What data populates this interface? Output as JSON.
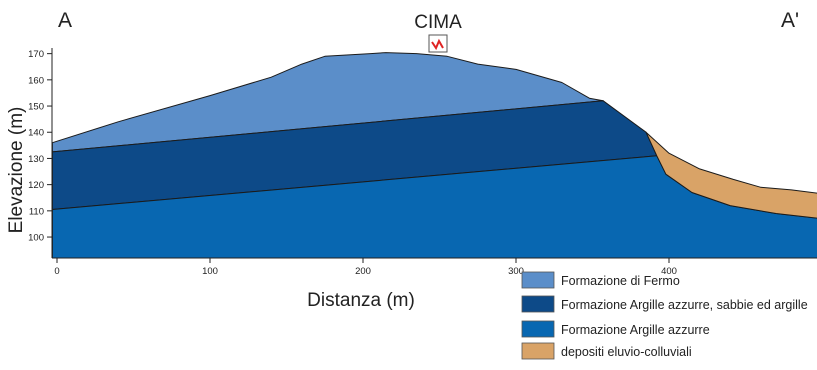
{
  "section": {
    "left_label": "A",
    "right_label": "A'",
    "peak_label": "CIMA"
  },
  "axes": {
    "xlabel": "Distanza (m)",
    "ylabel": "Elevazione (m)",
    "x_ticks": [
      0,
      100,
      200,
      300,
      400
    ],
    "y_ticks": [
      100,
      110,
      120,
      130,
      140,
      150,
      160,
      170
    ],
    "x_range": [
      0,
      500
    ],
    "y_range": [
      92,
      174
    ]
  },
  "layers": [
    {
      "id": "fermo",
      "name": "Formazione di Fermo",
      "color": "#5b8ec9",
      "top_surface": [
        [
          -3,
          136
        ],
        [
          40,
          144
        ],
        [
          100,
          154
        ],
        [
          140,
          161
        ],
        [
          160,
          166
        ],
        [
          175,
          169
        ],
        [
          205,
          170
        ],
        [
          215,
          170.4
        ],
        [
          235,
          170
        ],
        [
          255,
          169
        ],
        [
          275,
          166
        ],
        [
          300,
          164
        ],
        [
          330,
          159
        ],
        [
          348,
          153
        ],
        [
          357,
          152
        ]
      ],
      "base_surface": [
        [
          -3,
          132.5
        ],
        [
          357,
          152
        ]
      ]
    },
    {
      "id": "argille_sabbie",
      "name": "Formazione Argille azzurre, sabbie ed argille",
      "color": "#0d4a88",
      "top_surface": [
        [
          -3,
          132.5
        ],
        [
          357,
          152
        ],
        [
          385,
          140
        ]
      ],
      "base_surface": [
        [
          -3,
          110.5
        ],
        [
          392,
          131
        ]
      ]
    },
    {
      "id": "argille",
      "name": "Formazione Argille azzurre",
      "color": "#0867b1",
      "top_surface": [
        [
          -3,
          110.5
        ],
        [
          392,
          131
        ],
        [
          398,
          124
        ],
        [
          415,
          117
        ],
        [
          440,
          112
        ],
        [
          470,
          109
        ],
        [
          500,
          107
        ]
      ],
      "base_surface": [
        [
          -3,
          92
        ],
        [
          500,
          92
        ]
      ]
    },
    {
      "id": "depositi",
      "name": "depositi eluvio-colluviali",
      "color": "#d9a367",
      "top_surface": [
        [
          385,
          140
        ],
        [
          400,
          132
        ],
        [
          420,
          126
        ],
        [
          442,
          122
        ],
        [
          460,
          119
        ],
        [
          480,
          118
        ],
        [
          500,
          116.5
        ]
      ],
      "base_surface": [
        [
          392,
          131
        ],
        [
          398,
          124
        ],
        [
          415,
          117
        ],
        [
          440,
          112
        ],
        [
          470,
          109
        ],
        [
          500,
          107
        ]
      ]
    }
  ]
}
